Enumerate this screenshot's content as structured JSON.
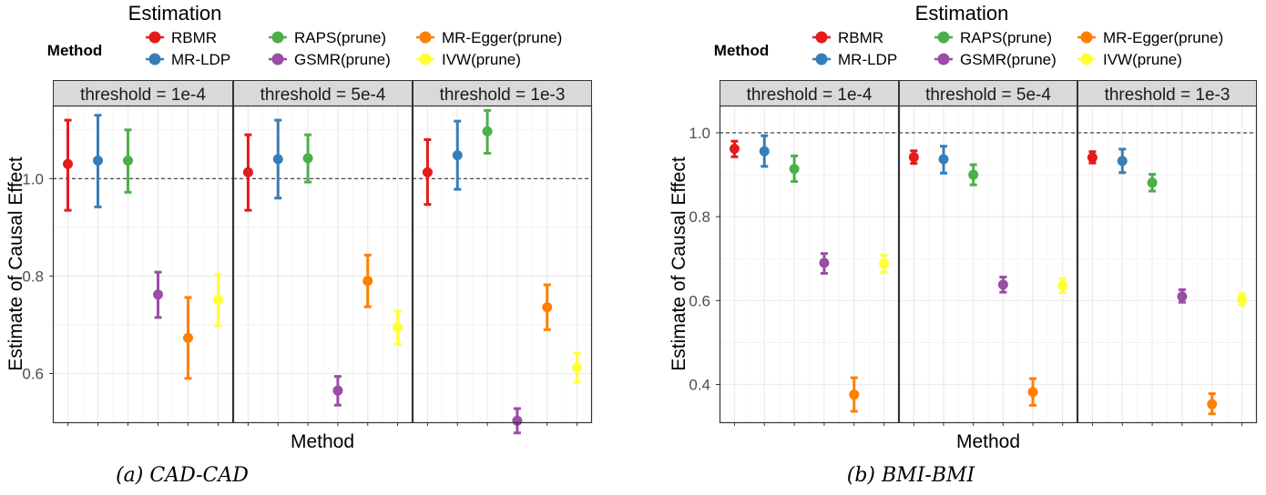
{
  "figure": {
    "legend_title": "Method",
    "methods": [
      {
        "name": "RBMR",
        "color": "#e41a1c"
      },
      {
        "name": "MR-LDP",
        "color": "#377eb8"
      },
      {
        "name": "RAPS(prune)",
        "color": "#4daf4a"
      },
      {
        "name": "GSMR(prune)",
        "color": "#984ea3"
      },
      {
        "name": "MR-Egger(prune)",
        "color": "#ff7f00"
      },
      {
        "name": "IVW(prune)",
        "color": "#ffff33"
      }
    ]
  },
  "chart_data": [
    {
      "type": "scatter",
      "subtype": "point-errorbar",
      "title": "Estimation",
      "caption": "(a) CAD-CAD",
      "xlabel": "Method",
      "ylabel": "Estimate of Causal Effect",
      "ylim": [
        0.5,
        1.15
      ],
      "yticks": [
        0.6,
        0.8,
        1.0
      ],
      "ytick_labels": [
        "0.6",
        "0.8",
        "1.0"
      ],
      "reference_line": 1.0,
      "legend_position": "top",
      "grid": true,
      "panels": [
        {
          "label": "threshold = 1e-4",
          "points": [
            {
              "method": "RBMR",
              "y": 1.03,
              "lo": 0.935,
              "hi": 1.12
            },
            {
              "method": "MR-LDP",
              "y": 1.037,
              "lo": 0.942,
              "hi": 1.13
            },
            {
              "method": "RAPS(prune)",
              "y": 1.037,
              "lo": 0.972,
              "hi": 1.1
            },
            {
              "method": "GSMR(prune)",
              "y": 0.762,
              "lo": 0.715,
              "hi": 0.808
            },
            {
              "method": "MR-Egger(prune)",
              "y": 0.673,
              "lo": 0.59,
              "hi": 0.756
            },
            {
              "method": "IVW(prune)",
              "y": 0.751,
              "lo": 0.698,
              "hi": 0.803
            }
          ]
        },
        {
          "label": "threshold = 5e-4",
          "points": [
            {
              "method": "RBMR",
              "y": 1.013,
              "lo": 0.935,
              "hi": 1.09
            },
            {
              "method": "MR-LDP",
              "y": 1.04,
              "lo": 0.96,
              "hi": 1.12
            },
            {
              "method": "RAPS(prune)",
              "y": 1.042,
              "lo": 0.993,
              "hi": 1.09
            },
            {
              "method": "GSMR(prune)",
              "y": 0.565,
              "lo": 0.535,
              "hi": 0.594
            },
            {
              "method": "MR-Egger(prune)",
              "y": 0.79,
              "lo": 0.737,
              "hi": 0.843
            },
            {
              "method": "IVW(prune)",
              "y": 0.695,
              "lo": 0.66,
              "hi": 0.728
            }
          ]
        },
        {
          "label": "threshold = 1e-3",
          "points": [
            {
              "method": "RBMR",
              "y": 1.013,
              "lo": 0.947,
              "hi": 1.08
            },
            {
              "method": "MR-LDP",
              "y": 1.048,
              "lo": 0.978,
              "hi": 1.118
            },
            {
              "method": "RAPS(prune)",
              "y": 1.097,
              "lo": 1.052,
              "hi": 1.14
            },
            {
              "method": "GSMR(prune)",
              "y": 0.503,
              "lo": 0.478,
              "hi": 0.528
            },
            {
              "method": "MR-Egger(prune)",
              "y": 0.736,
              "lo": 0.69,
              "hi": 0.782
            },
            {
              "method": "IVW(prune)",
              "y": 0.612,
              "lo": 0.582,
              "hi": 0.642
            }
          ]
        }
      ]
    },
    {
      "type": "scatter",
      "subtype": "point-errorbar",
      "title": "Estimation",
      "caption": "(b) BMI-BMI",
      "xlabel": "Method",
      "ylabel": "Estimate of Causal Effect",
      "ylim": [
        0.31,
        1.065
      ],
      "yticks": [
        0.4,
        0.6,
        0.8,
        1.0
      ],
      "ytick_labels": [
        "0.4",
        "0.6",
        "0.8",
        "1.0"
      ],
      "reference_line": 1.0,
      "legend_position": "top",
      "grid": true,
      "panels": [
        {
          "label": "threshold = 1e-4",
          "points": [
            {
              "method": "RBMR",
              "y": 0.962,
              "lo": 0.943,
              "hi": 0.98
            },
            {
              "method": "MR-LDP",
              "y": 0.956,
              "lo": 0.92,
              "hi": 0.993
            },
            {
              "method": "RAPS(prune)",
              "y": 0.914,
              "lo": 0.884,
              "hi": 0.945
            },
            {
              "method": "GSMR(prune)",
              "y": 0.69,
              "lo": 0.665,
              "hi": 0.712
            },
            {
              "method": "MR-Egger(prune)",
              "y": 0.376,
              "lo": 0.336,
              "hi": 0.416
            },
            {
              "method": "IVW(prune)",
              "y": 0.688,
              "lo": 0.668,
              "hi": 0.708
            }
          ]
        },
        {
          "label": "threshold = 5e-4",
          "points": [
            {
              "method": "RBMR",
              "y": 0.942,
              "lo": 0.927,
              "hi": 0.957
            },
            {
              "method": "MR-LDP",
              "y": 0.937,
              "lo": 0.904,
              "hi": 0.968
            },
            {
              "method": "RAPS(prune)",
              "y": 0.9,
              "lo": 0.876,
              "hi": 0.924
            },
            {
              "method": "GSMR(prune)",
              "y": 0.638,
              "lo": 0.62,
              "hi": 0.656
            },
            {
              "method": "MR-Egger(prune)",
              "y": 0.382,
              "lo": 0.35,
              "hi": 0.414
            },
            {
              "method": "IVW(prune)",
              "y": 0.636,
              "lo": 0.619,
              "hi": 0.653
            }
          ]
        },
        {
          "label": "threshold = 1e-3",
          "points": [
            {
              "method": "RBMR",
              "y": 0.941,
              "lo": 0.928,
              "hi": 0.955
            },
            {
              "method": "MR-LDP",
              "y": 0.933,
              "lo": 0.905,
              "hi": 0.961
            },
            {
              "method": "RAPS(prune)",
              "y": 0.881,
              "lo": 0.861,
              "hi": 0.901
            },
            {
              "method": "GSMR(prune)",
              "y": 0.61,
              "lo": 0.596,
              "hi": 0.626
            },
            {
              "method": "MR-Egger(prune)",
              "y": 0.353,
              "lo": 0.33,
              "hi": 0.378
            },
            {
              "method": "IVW(prune)",
              "y": 0.603,
              "lo": 0.59,
              "hi": 0.616
            }
          ]
        }
      ]
    }
  ]
}
